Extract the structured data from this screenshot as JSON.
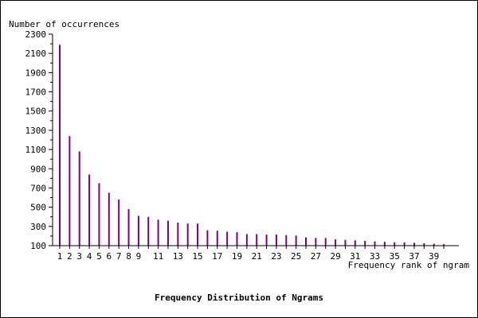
{
  "chart_data": {
    "type": "bar",
    "title": "Frequency Distribution of Ngrams",
    "ylabel": "Number of occurrences",
    "xlabel": "Frequency rank of ngram",
    "ylim": [
      100,
      2300
    ],
    "y_ticks": [
      100,
      300,
      500,
      700,
      900,
      1100,
      1300,
      1500,
      1700,
      1900,
      2100,
      2300
    ],
    "x_tick_labels": [
      "1",
      "2",
      "3",
      "4",
      "5",
      "6",
      "7",
      "8",
      "9",
      "11",
      "13",
      "15",
      "17",
      "19",
      "21",
      "23",
      "25",
      "27",
      "29",
      "31",
      "33",
      "35",
      "37",
      "39"
    ],
    "categories": [
      1,
      2,
      3,
      4,
      5,
      6,
      7,
      8,
      9,
      10,
      11,
      12,
      13,
      14,
      15,
      16,
      17,
      18,
      19,
      20,
      21,
      22,
      23,
      24,
      25,
      26,
      27,
      28,
      29,
      30,
      31,
      32,
      33,
      34,
      35,
      36,
      37,
      38,
      39,
      40
    ],
    "values": [
      2190,
      1240,
      1080,
      840,
      750,
      650,
      580,
      480,
      410,
      400,
      370,
      360,
      340,
      330,
      330,
      260,
      255,
      245,
      240,
      220,
      220,
      215,
      215,
      210,
      205,
      185,
      180,
      180,
      165,
      160,
      155,
      150,
      145,
      140,
      135,
      135,
      130,
      125,
      120,
      115
    ],
    "bar_color": "#800080",
    "grid": false
  }
}
